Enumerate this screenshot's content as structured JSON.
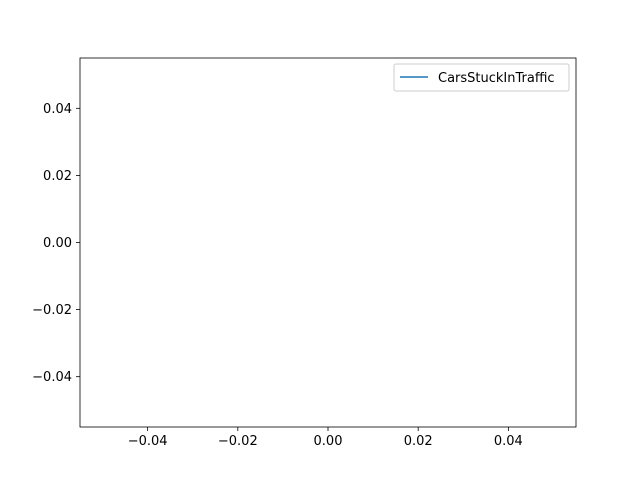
{
  "chart_data": {
    "type": "line",
    "title": "",
    "xlabel": "",
    "ylabel": "",
    "xlim": [
      -0.055,
      0.055
    ],
    "ylim": [
      -0.055,
      0.055
    ],
    "xticks": [
      -0.04,
      -0.02,
      0.0,
      0.02,
      0.04
    ],
    "xtick_labels": [
      "−0.04",
      "−0.02",
      "0.00",
      "0.02",
      "0.04"
    ],
    "yticks": [
      -0.04,
      -0.02,
      0.0,
      0.02,
      0.04
    ],
    "ytick_labels": [
      "−0.04",
      "−0.02",
      "0.00",
      "0.02",
      "0.04"
    ],
    "grid": false,
    "legend_position": "upper right",
    "series": [
      {
        "name": "CarsStuckInTraffic",
        "color": "#1f77b4",
        "x": [],
        "y": []
      }
    ]
  }
}
